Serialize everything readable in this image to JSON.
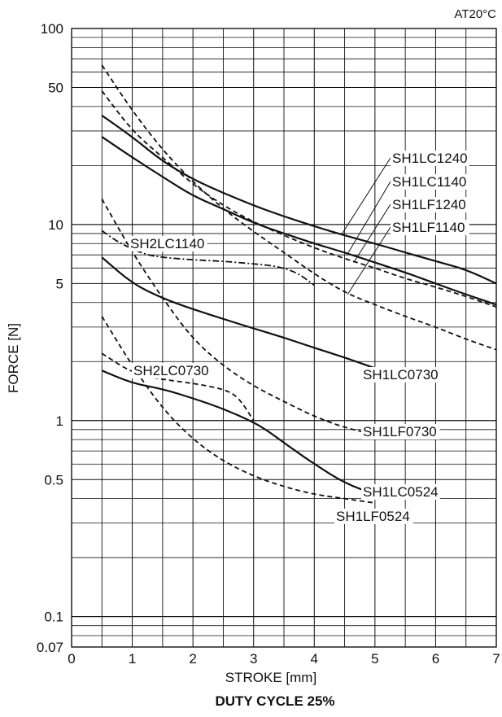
{
  "chart_data": {
    "type": "line",
    "title": "DUTY CYCLE 25%",
    "condition": "AT20°C",
    "xlabel": "STROKE  [mm]",
    "ylabel": "FORCE  [N]",
    "xlim": [
      0,
      7
    ],
    "ylim": [
      0.07,
      100
    ],
    "yscale": "log",
    "grid": true,
    "x_ticks": [
      "0",
      "1",
      "2",
      "3",
      "4",
      "5",
      "6",
      "7"
    ],
    "y_ticks": [
      {
        "value": 100,
        "label": "100"
      },
      {
        "value": 50,
        "label": "50"
      },
      {
        "value": 10,
        "label": "10"
      },
      {
        "value": 5,
        "label": "5"
      },
      {
        "value": 1,
        "label": "1"
      },
      {
        "value": 0.5,
        "label": "0.5"
      },
      {
        "value": 0.1,
        "label": "0.1"
      },
      {
        "value": 0.07,
        "label": "0.07"
      }
    ],
    "series": [
      {
        "name": "SH1LC1240",
        "style": "solid",
        "color": "#111111",
        "x": [
          0.5,
          1,
          1.5,
          2,
          2.5,
          3,
          3.5,
          4,
          4.5,
          5,
          5.5,
          6,
          6.5,
          7
        ],
        "y": [
          36,
          28,
          21,
          17,
          14.5,
          12.5,
          11,
          9.8,
          8.8,
          8,
          7.2,
          6.5,
          5.9,
          5
        ]
      },
      {
        "name": "SH1LC1140",
        "style": "solid",
        "color": "#111111",
        "x": [
          0.5,
          1,
          1.5,
          2,
          2.5,
          3,
          3.5,
          4,
          4.5,
          5,
          5.5,
          6,
          6.5,
          7
        ],
        "y": [
          28,
          22,
          17.5,
          14,
          12,
          10.2,
          9,
          8,
          7.2,
          6.4,
          5.7,
          5,
          4.4,
          3.9
        ]
      },
      {
        "name": "SH1LF1240",
        "style": "dashed",
        "color": "#111111",
        "x": [
          0.5,
          1,
          1.5,
          2,
          2.5,
          3,
          3.5,
          4,
          4.5,
          5,
          5.5,
          6,
          6.5,
          7
        ],
        "y": [
          48,
          30,
          22,
          16,
          12.5,
          10.3,
          8.8,
          7.6,
          6.7,
          6,
          5.3,
          4.8,
          4.3,
          3.8
        ]
      },
      {
        "name": "SH1LF1140",
        "style": "dashed",
        "color": "#111111",
        "x": [
          0.5,
          1,
          1.5,
          2,
          2.5,
          3,
          3.5,
          4,
          4.5,
          5,
          5.5,
          6,
          6.5,
          7
        ],
        "y": [
          65,
          38,
          24,
          16.5,
          12,
          9.2,
          7.2,
          5.6,
          4.5,
          3.9,
          3.4,
          3.0,
          2.6,
          2.3
        ]
      },
      {
        "name": "SH2LC1140",
        "style": "dashdot",
        "color": "#111111",
        "x": [
          0.5,
          0.75,
          1,
          1.25,
          1.5,
          2,
          2.5,
          3,
          3.25,
          3.5,
          3.75,
          4
        ],
        "y": [
          9.3,
          8.2,
          7.5,
          7.0,
          6.8,
          6.6,
          6.5,
          6.3,
          6.2,
          6.0,
          5.6,
          4.9
        ]
      },
      {
        "name": "SH1LC0730",
        "style": "solid",
        "color": "#111111",
        "x": [
          0.5,
          1,
          1.5,
          2,
          2.5,
          3,
          3.5,
          4,
          4.5,
          5
        ],
        "y": [
          6.8,
          5.0,
          4.2,
          3.7,
          3.3,
          2.95,
          2.65,
          2.35,
          2.1,
          1.85
        ]
      },
      {
        "name": "SH1LF0730",
        "style": "dashed",
        "color": "#111111",
        "x": [
          0.5,
          1,
          1.5,
          2,
          2.5,
          3,
          3.5,
          4,
          4.5,
          5
        ],
        "y": [
          13.5,
          7.2,
          4.2,
          2.6,
          1.9,
          1.5,
          1.25,
          1.05,
          0.92,
          0.85
        ]
      },
      {
        "name": "SH2LC0730",
        "style": "dashed",
        "color": "#111111",
        "x": [
          0.5,
          1,
          1.5,
          2,
          2.5,
          2.75,
          3
        ],
        "y": [
          2.2,
          1.75,
          1.62,
          1.55,
          1.45,
          1.32,
          1.0
        ]
      },
      {
        "name": "SH1LC0524",
        "style": "solid",
        "color": "#111111",
        "x": [
          0.5,
          1,
          1.5,
          2,
          2.5,
          3,
          3.25,
          3.5,
          4,
          4.5,
          5
        ],
        "y": [
          1.8,
          1.55,
          1.45,
          1.3,
          1.15,
          0.98,
          0.88,
          0.77,
          0.6,
          0.48,
          0.42
        ]
      },
      {
        "name": "SH1LF0524",
        "style": "dashed",
        "color": "#111111",
        "x": [
          0.5,
          1,
          1.5,
          2,
          2.5,
          3,
          3.5,
          4,
          4.5,
          5
        ],
        "y": [
          3.4,
          1.9,
          1.15,
          0.8,
          0.62,
          0.52,
          0.46,
          0.42,
          0.4,
          0.38
        ]
      }
    ],
    "labels": [
      {
        "text": "SH1LC1240",
        "series": "SH1LC1240"
      },
      {
        "text": "SH1LC1140",
        "series": "SH1LC1140"
      },
      {
        "text": "SH1LF1240",
        "series": "SH1LF1240"
      },
      {
        "text": "SH1LF1140",
        "series": "SH1LF1140"
      },
      {
        "text": "SH2LC1140",
        "series": "SH2LC1140"
      },
      {
        "text": "SH1LC0730",
        "series": "SH1LC0730"
      },
      {
        "text": "SH2LC0730",
        "series": "SH2LC0730"
      },
      {
        "text": "SH1LF0730",
        "series": "SH1LF0730"
      },
      {
        "text": "SH1LC0524",
        "series": "SH1LC0524"
      },
      {
        "text": "SH1LF0524",
        "series": "SH1LF0524"
      }
    ]
  }
}
